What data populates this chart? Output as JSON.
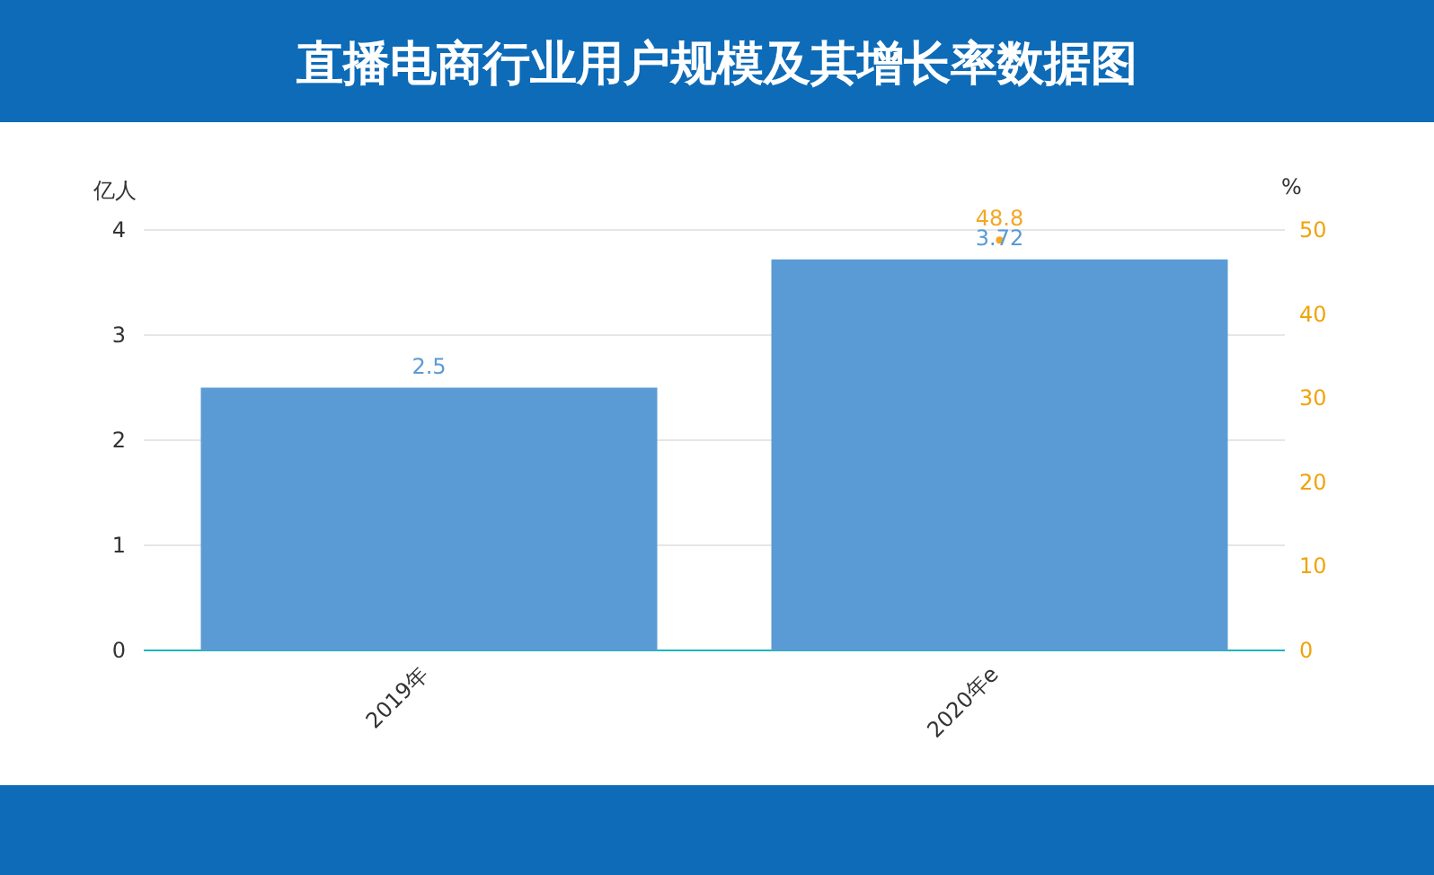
{
  "chart_data": {
    "type": "bar",
    "title": "直播电商行业用户规模及其增长率数据图",
    "ylabel": "亿人",
    "y2label": "%",
    "categories": [
      "2019年",
      "2020年e"
    ],
    "series": [
      {
        "color": "#5b9bd5",
        "values": [
          2.5,
          3.72
        ]
      },
      {
        "type": "line",
        "axis": "y2",
        "color": "#f5a623",
        "values": [
          null,
          48.8
        ]
      }
    ],
    "ylim": [
      0,
      4
    ],
    "yticks": [
      0,
      1,
      2,
      3,
      4
    ],
    "y2lim": [
      0,
      50
    ],
    "y2ticks": [
      0,
      10,
      20,
      30,
      40,
      50
    ],
    "grid": "y",
    "data_labels": true,
    "marker": "circle"
  }
}
